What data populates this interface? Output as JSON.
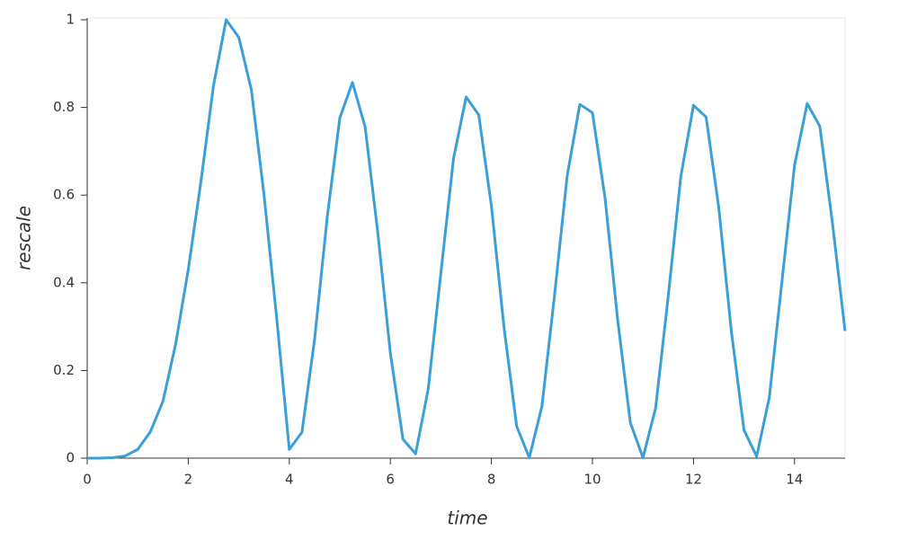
{
  "chart_data": {
    "type": "line",
    "x_label": "time",
    "y_label": "rescale",
    "x": [
      0,
      0.25,
      0.5,
      0.75,
      1,
      1.25,
      1.5,
      1.75,
      2,
      2.25,
      2.5,
      2.75,
      3,
      3.25,
      3.5,
      3.75,
      4,
      4.25,
      4.5,
      4.75,
      5,
      5.25,
      5.5,
      5.75,
      6,
      6.25,
      6.5,
      6.75,
      7,
      7.25,
      7.5,
      7.75,
      8,
      8.25,
      8.5,
      8.75,
      9,
      9.25,
      9.5,
      9.75,
      10,
      10.25,
      10.5,
      10.75,
      11,
      11.25,
      11.5,
      11.75,
      12,
      12.25,
      12.5,
      12.75,
      13,
      13.25,
      13.5,
      13.75,
      14,
      14.25,
      14.5,
      14.75,
      15
    ],
    "series": [
      {
        "color": "#3a9fd6",
        "values": [
          0,
          0,
          0.001,
          0.005,
          0.02,
          0.06,
          0.13,
          0.26,
          0.43,
          0.63,
          0.85,
          1,
          0.96,
          0.84,
          0.6,
          0.32,
          0.02,
          0.059,
          0.27,
          0.549,
          0.776,
          0.857,
          0.756,
          0.516,
          0.24,
          0.043,
          0.01,
          0.158,
          0.422,
          0.683,
          0.824,
          0.783,
          0.576,
          0.298,
          0.073,
          0.001,
          0.118,
          0.372,
          0.644,
          0.807,
          0.788,
          0.593,
          0.315,
          0.081,
          0.001,
          0.114,
          0.369,
          0.643,
          0.805,
          0.778,
          0.572,
          0.289,
          0.064,
          0.004,
          0.138,
          0.402,
          0.668,
          0.809,
          0.757,
          0.537,
          0.29
        ]
      }
    ],
    "xlim": [
      0,
      15
    ],
    "xticks": [
      0,
      2,
      4,
      6,
      8,
      10,
      12,
      14
    ],
    "ylim": [
      0,
      1
    ],
    "yticks": [
      0,
      0.2,
      0.4,
      0.6,
      0.8,
      1
    ]
  }
}
